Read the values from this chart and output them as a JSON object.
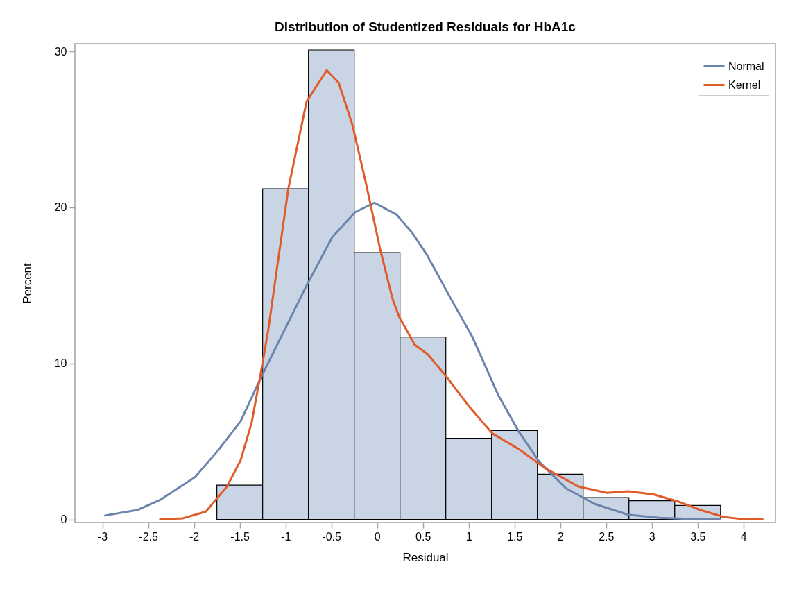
{
  "chart_data": {
    "type": "histogram",
    "title": "Distribution of Studentized Residuals for HbA1c",
    "xlabel": "Residual",
    "ylabel": "Percent",
    "bins": [
      -1.75,
      -1.25,
      -0.75,
      -0.25,
      0.25,
      0.75,
      1.25,
      1.75,
      2.25,
      2.75,
      3.25,
      3.75
    ],
    "values": [
      2.2,
      21.2,
      30.1,
      17.1,
      11.7,
      5.2,
      5.7,
      2.9,
      1.4,
      1.2,
      0.9
    ],
    "color": "#c9d4e4",
    "series": [
      {
        "name": "Normal",
        "type": "line",
        "color": "#6a84ab",
        "x": [
          -2.97,
          -2.62,
          -2.37,
          -1.99,
          -1.74,
          -1.49,
          -1.26,
          -0.99,
          -0.77,
          -0.49,
          -0.24,
          -0.03,
          0.21,
          0.38,
          0.55,
          0.81,
          1.04,
          1.32,
          1.55,
          1.77,
          2.06,
          2.37,
          2.74,
          3.08,
          3.4,
          3.75
        ],
        "values": [
          0.25,
          0.6,
          1.25,
          2.7,
          4.4,
          6.3,
          9.2,
          12.4,
          15.0,
          18.1,
          19.7,
          20.3,
          19.55,
          18.4,
          16.9,
          14.1,
          11.7,
          8.0,
          5.6,
          3.7,
          2.0,
          1.0,
          0.3,
          0.1,
          0.03,
          0
        ]
      },
      {
        "name": "Kernel",
        "type": "line",
        "color": "#e15a2a",
        "x": [
          -2.37,
          -2.12,
          -1.87,
          -1.64,
          -1.49,
          -1.37,
          -1.27,
          -1.19,
          -1.12,
          -0.97,
          -0.77,
          -0.55,
          -0.42,
          -0.27,
          -0.12,
          0.03,
          0.17,
          0.24,
          0.41,
          0.55,
          0.75,
          1.01,
          1.26,
          1.55,
          1.83,
          2.2,
          2.51,
          2.74,
          3.02,
          3.31,
          3.53,
          3.79,
          4.02,
          4.21
        ],
        "values": [
          0,
          0.07,
          0.5,
          2.1,
          3.8,
          6.2,
          9.4,
          12.1,
          15.0,
          21.2,
          26.8,
          28.8,
          28.0,
          25.3,
          21.5,
          17.4,
          14.1,
          13.0,
          11.2,
          10.6,
          9.2,
          7.2,
          5.5,
          4.5,
          3.3,
          2.1,
          1.7,
          1.8,
          1.6,
          1.1,
          0.6,
          0.15,
          0,
          0
        ]
      }
    ],
    "xlim": [
      -3.3,
      4.35
    ],
    "ylim": [
      -0.2,
      30.5
    ],
    "xticks": [
      -3,
      -2.5,
      -2,
      -1.5,
      -1,
      -0.5,
      0,
      0.5,
      1,
      1.5,
      2,
      2.5,
      3,
      3.5,
      4
    ],
    "yticks": [
      0,
      10,
      20,
      30
    ],
    "grid": false,
    "legend": "top right",
    "marker": "none"
  }
}
